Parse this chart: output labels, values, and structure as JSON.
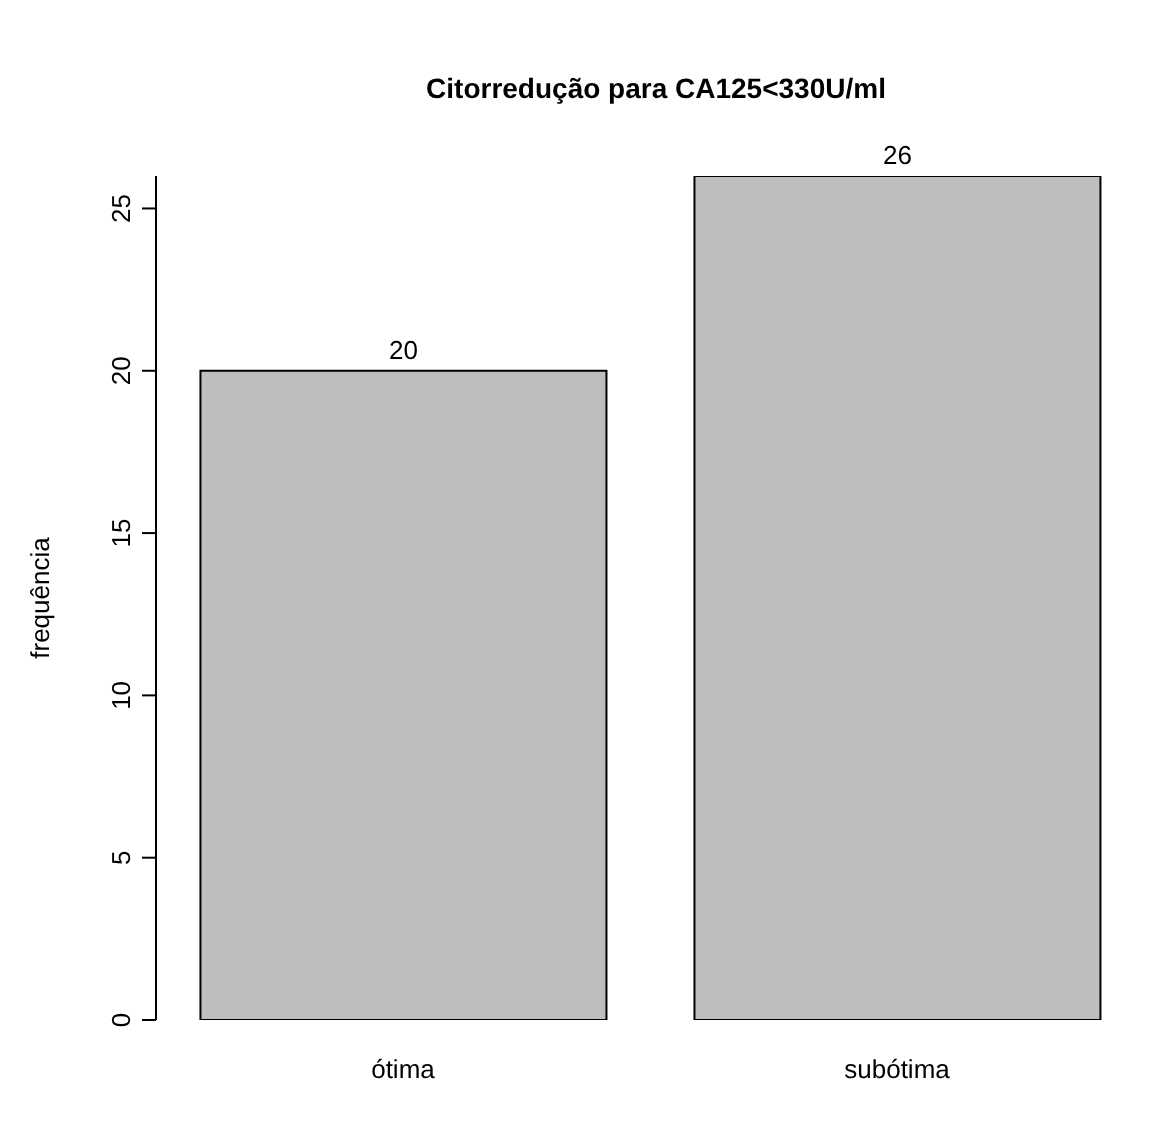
{
  "chart_data": {
    "type": "bar",
    "title": "Citorredução para CA125<330U/ml",
    "ylabel": "frequência",
    "categories": [
      "ótima",
      "subótima"
    ],
    "values": [
      20,
      26
    ],
    "color": "#bebebe",
    "ylim": [
      0,
      26
    ],
    "yticks": [
      0,
      5,
      10,
      15,
      20,
      25
    ],
    "data_labels": true,
    "grid": false,
    "legend": false
  }
}
